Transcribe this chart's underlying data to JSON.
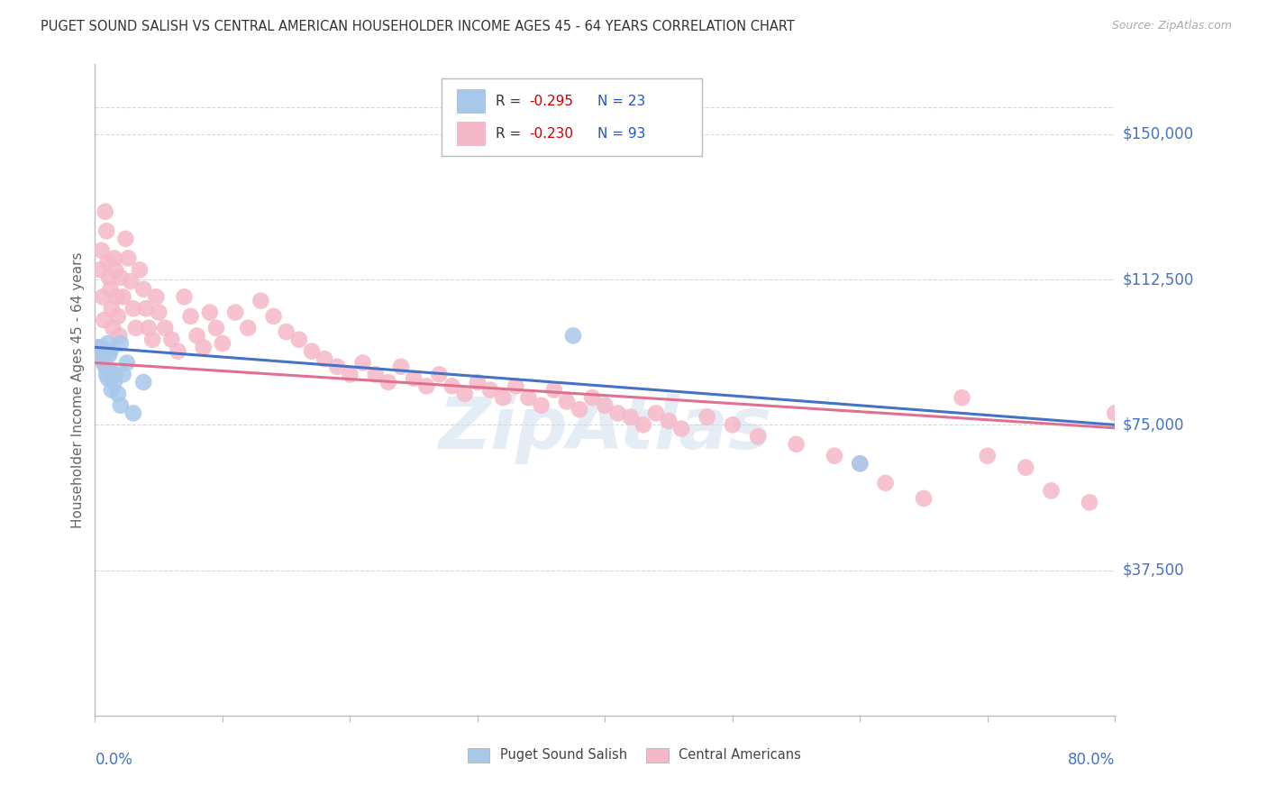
{
  "title": "PUGET SOUND SALISH VS CENTRAL AMERICAN HOUSEHOLDER INCOME AGES 45 - 64 YEARS CORRELATION CHART",
  "source": "Source: ZipAtlas.com",
  "ylabel": "Householder Income Ages 45 - 64 years",
  "ytick_labels": [
    "$37,500",
    "$75,000",
    "$112,500",
    "$150,000"
  ],
  "ytick_values": [
    37500,
    75000,
    112500,
    150000
  ],
  "xmin": 0.0,
  "xmax": 0.8,
  "ymin": 0,
  "ymax": 168000,
  "legend_r1": "R = -0.295",
  "legend_n1": "N = 23",
  "legend_r2": "R = -0.230",
  "legend_n2": "N = 93",
  "series1_color": "#a8c8ea",
  "series1_edge": "#a8c8ea",
  "series2_color": "#f5b8c8",
  "series2_edge": "#f5b8c8",
  "line1_color": "#4472c4",
  "line2_color": "#e07090",
  "grid_color": "#d8d8d8",
  "watermark_color": "#c5d8ec",
  "title_color": "#333333",
  "source_color": "#aaaaaa",
  "ylabel_color": "#666666",
  "axis_color": "#bbbbbb",
  "label_color": "#4472c4",
  "xlabel_color": "#4472c4",
  "line1_intercept": 95000,
  "line1_slope": -25000,
  "line2_intercept": 91000,
  "line2_slope": -21000
}
